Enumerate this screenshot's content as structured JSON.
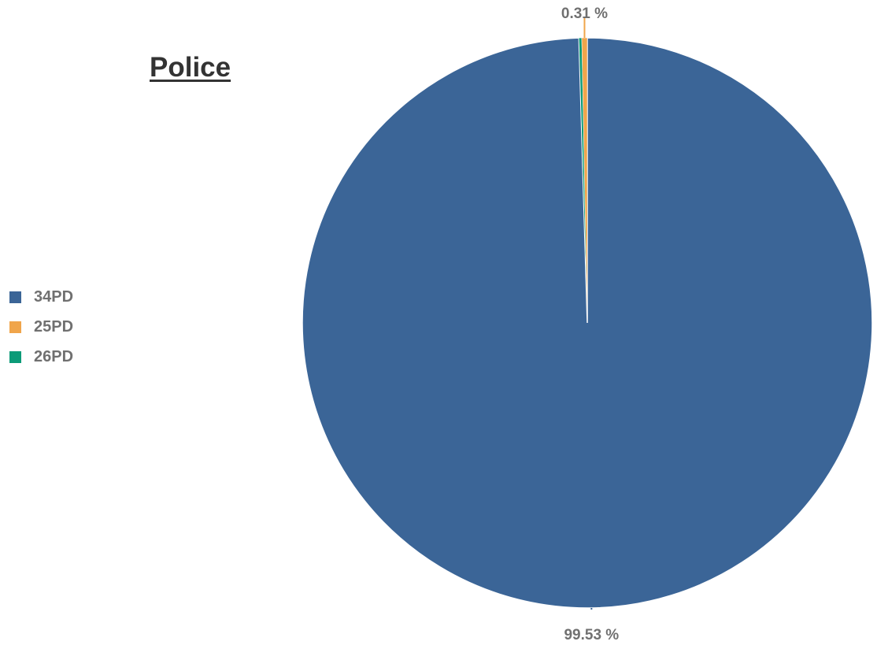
{
  "chart_data": {
    "type": "pie",
    "title": "Police",
    "legend_position": "left",
    "slices": [
      {
        "label": "34PD",
        "value": 99.53,
        "color": "#3b6597",
        "data_label": "99.53 %"
      },
      {
        "label": "25PD",
        "value": 0.31,
        "color": "#f0a54b",
        "data_label": "0.31 %"
      },
      {
        "label": "26PD",
        "value": 0.16,
        "color": "#0c9b78",
        "data_label": ""
      }
    ]
  }
}
